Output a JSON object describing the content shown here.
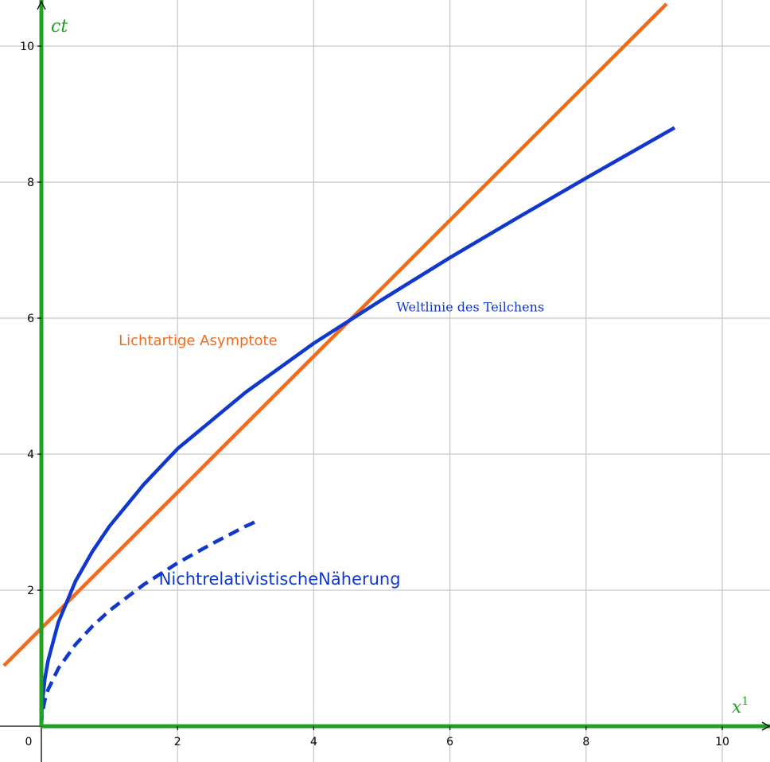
{
  "chart_data": {
    "type": "line",
    "title": "",
    "xlabel": "x",
    "xlabel_superscript": "1",
    "ylabel": "ct",
    "xlim": [
      0,
      10.7
    ],
    "ylim": [
      0,
      10.6
    ],
    "x_ticks": [
      0,
      2,
      4,
      6,
      8,
      10
    ],
    "y_ticks": [
      2,
      4,
      6,
      8,
      10
    ],
    "x_tick_labels": [
      "0",
      "2",
      "4",
      "6",
      "8",
      "10"
    ],
    "y_tick_labels": [
      "2",
      "4",
      "6",
      "8",
      "10"
    ],
    "grid": true,
    "series": [
      {
        "name": "Lichtartige Asymptote",
        "color": "#f26b1d",
        "style": "solid",
        "x": [
          0,
          9.18
        ],
        "y": [
          1.44,
          10.62
        ]
      },
      {
        "name": "Weltlinie des Teilchens",
        "color": "#1138cc",
        "style": "solid",
        "x": [
          0,
          0.01,
          0.05,
          0.1,
          0.25,
          0.5,
          0.75,
          1,
          1.5,
          2,
          3,
          4,
          5,
          6,
          7,
          8,
          9,
          9.3
        ],
        "y": [
          0,
          0.31,
          0.69,
          0.97,
          1.53,
          2.13,
          2.57,
          2.94,
          3.55,
          4.08,
          4.91,
          5.63,
          6.27,
          6.89,
          7.48,
          8.06,
          8.63,
          8.8
        ]
      },
      {
        "name": "NichtrelativistischeNäherung",
        "color": "#1138cc",
        "style": "dashed",
        "x": [
          0,
          0.01,
          0.05,
          0.1,
          0.25,
          0.5,
          0.75,
          1,
          1.5,
          2,
          2.5,
          3,
          3.2
        ],
        "y": [
          0,
          0.17,
          0.38,
          0.54,
          0.85,
          1.2,
          1.47,
          1.7,
          2.08,
          2.4,
          2.68,
          2.94,
          3.03
        ]
      }
    ],
    "annotations": [
      {
        "text": "Lichtartige Asymptote",
        "color": "#f26b1d",
        "x": 2.3,
        "y": 5.6,
        "font": "sans"
      },
      {
        "text": "Weltlinie des Teilchens",
        "color": "#1138cc",
        "x": 6.3,
        "y": 6.1,
        "font": "serif"
      },
      {
        "text": "NichtrelativistischeNäherung",
        "color": "#1138cc",
        "x": 3.5,
        "y": 2.08,
        "font": "sans"
      }
    ],
    "axis_color": "#22a022",
    "grid_color": "#c8c8c8"
  }
}
